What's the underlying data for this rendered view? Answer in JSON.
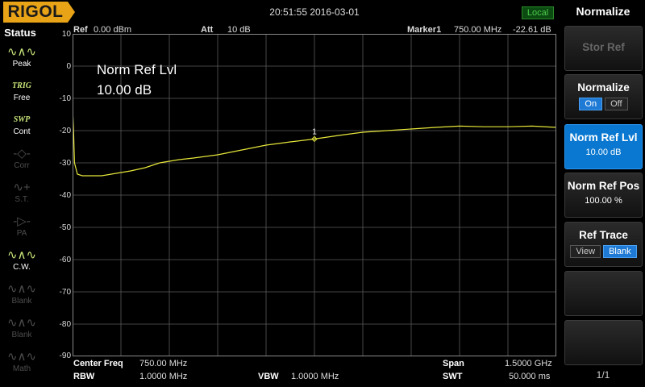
{
  "brand": "RIGOL",
  "datetime": "20:51:55 2016-03-01",
  "remote_status": "Local",
  "status_panel": {
    "title": "Status",
    "items": [
      {
        "icon": "peak-icon",
        "label": "Peak",
        "active": true
      },
      {
        "icon": "trig-icon",
        "label": "Free",
        "head": "TRIG",
        "active": true
      },
      {
        "icon": "swp-icon",
        "label": "Cont",
        "head": "SWP",
        "active": true
      },
      {
        "icon": "corr-icon",
        "label": "Corr",
        "active": false
      },
      {
        "icon": "st-icon",
        "label": "S.T.",
        "active": false
      },
      {
        "icon": "pa-icon",
        "label": "PA",
        "active": false
      },
      {
        "icon": "cw-icon",
        "label": "C.W.",
        "active": true
      },
      {
        "icon": "blank-icon",
        "label": "Blank",
        "active": false
      },
      {
        "icon": "blank-icon",
        "label": "Blank",
        "active": false
      },
      {
        "icon": "math-icon",
        "label": "Math",
        "active": false
      }
    ]
  },
  "header": {
    "ref_label": "Ref",
    "ref_value": "0.00 dBm",
    "att_label": "Att",
    "att_value": "10 dB",
    "marker_label": "Marker1",
    "marker_freq": "750.00 MHz",
    "marker_level": "-22.61 dB"
  },
  "overlay": {
    "line1": "Norm Ref Lvl",
    "line2": "10.00 dB"
  },
  "y_ticks": [
    "10",
    "0",
    "-10",
    "-20",
    "-30",
    "-40",
    "-50",
    "-60",
    "-70",
    "-80",
    "-90"
  ],
  "marker_number": "1",
  "footer": {
    "center_freq_label": "Center Freq",
    "center_freq_value": "750.00 MHz",
    "rbw_label": "RBW",
    "rbw_value": "1.0000 MHz",
    "vbw_label": "VBW",
    "vbw_value": "1.0000 MHz",
    "span_label": "Span",
    "span_value": "1.5000 GHz",
    "swt_label": "SWT",
    "swt_value": "50.000 ms"
  },
  "menu": {
    "title": "Normalize",
    "keys": {
      "stor_ref": "Stor Ref",
      "normalize": "Normalize",
      "normalize_on": "On",
      "normalize_off": "Off",
      "norm_ref_lvl": "Norm Ref Lvl",
      "norm_ref_lvl_value": "10.00 dB",
      "norm_ref_pos": "Norm Ref Pos",
      "norm_ref_pos_value": "100.00 %",
      "ref_trace": "Ref Trace",
      "ref_trace_view": "View",
      "ref_trace_blank": "Blank"
    },
    "page": "1/1"
  },
  "colors": {
    "trace": "#e6e63a",
    "brand_bg": "#e8a317",
    "active_key": "#0a78d0",
    "grid": "#5a5a5a"
  },
  "chart_data": {
    "type": "line",
    "xlabel": "",
    "ylabel": "",
    "ylim": [
      -90,
      10
    ],
    "xlim_mhz": [
      0,
      1500
    ],
    "series": [
      {
        "x": [
          0,
          3,
          6,
          15,
          30,
          60,
          90,
          120,
          150,
          180,
          225,
          270,
          330,
          375,
          450,
          525,
          600,
          675,
          750,
          825,
          900,
          975,
          1050,
          1125,
          1200,
          1275,
          1350,
          1425,
          1500
        ],
        "values": [
          -13,
          -20,
          -30,
          -33.5,
          -34,
          -34,
          -34,
          -33.5,
          -33,
          -32.5,
          -31.5,
          -30,
          -29,
          -28.5,
          -27.5,
          -26,
          -24.5,
          -23.5,
          -22.6,
          -21.5,
          -20.5,
          -20,
          -19.5,
          -19,
          -18.6,
          -18.8,
          -18.8,
          -18.6,
          -19
        ]
      }
    ]
  }
}
